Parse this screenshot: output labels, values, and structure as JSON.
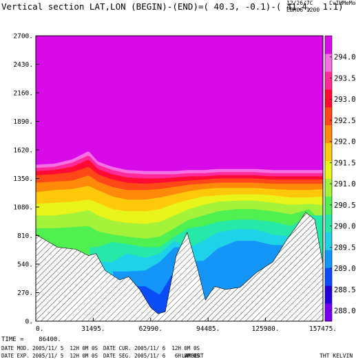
{
  "header": {
    "title": "Vertical section LAT,LON (BEGIN)-(END)=( 40.3, -0.1)-( 41.4,  1.1)",
    "date_short": "12/26/7C",
    "version": "CvIHMeMos",
    "case": "EBR06 1200"
  },
  "footer": {
    "time": "TIME =    86400.",
    "date_mod": "DATE MOD. 2005/11/ 5  12H 0M 0S",
    "date_exp": "DATE EXP. 2005/11/ 5  12H 0M 0S",
    "date_cur": "DATE CUR. 2005/11/ 6  12H 0M 0S",
    "date_seg": "DATE SEG. 2005/11/ 6   6H 0M 0S",
    "projection": "LAMBERT",
    "variable": "THT KELVIN"
  },
  "colors": {
    "bands": [
      "#7a00f0",
      "#2200d8",
      "#0a4cf6",
      "#1496f8",
      "#1ed2e8",
      "#26e8a8",
      "#50f050",
      "#a4f23a",
      "#e8f41a",
      "#ffc80a",
      "#ff8a0a",
      "#ff4818",
      "#ff0a32",
      "#ff2a9a",
      "#f470e4",
      "#d80ae8"
    ]
  },
  "chart_data": {
    "type": "contour",
    "x_ticks": [
      "0.",
      "31495.",
      "62990.",
      "94485.",
      "125980.",
      "157475."
    ],
    "x_tick_values": [
      0,
      31495,
      62990,
      94485,
      125980,
      157475
    ],
    "y_ticks": [
      "0.",
      "270.",
      "540.",
      "810.",
      "1080.",
      "1350.",
      "1620.",
      "1890.",
      "2160.",
      "2430.",
      "2700."
    ],
    "y_tick_values": [
      0,
      270,
      540,
      810,
      1080,
      1350,
      1620,
      1890,
      2160,
      2430,
      2700
    ],
    "xlim": [
      0,
      157475
    ],
    "ylim": [
      0,
      2700
    ],
    "colorbar_labels": [
      "288.0",
      "288.5",
      "289.0",
      "289.5",
      "290.0",
      "290.5",
      "291.0",
      "291.5",
      "292.0",
      "292.5",
      "293.0",
      "293.5",
      "294.0"
    ],
    "colorbar_min": 287.75,
    "colorbar_max": 294.5,
    "terrain": {
      "x": [
        0,
        5000,
        12000,
        22000,
        29000,
        33000,
        38000,
        46000,
        51000,
        57000,
        63000,
        67000,
        71000,
        77000,
        83000,
        89000,
        93000,
        98000,
        104000,
        112000,
        121000,
        130000,
        138000,
        143000,
        148000,
        153000,
        157475
      ],
      "z": [
        820,
        770,
        700,
        680,
        620,
        640,
        480,
        390,
        420,
        300,
        130,
        70,
        90,
        620,
        840,
        480,
        200,
        330,
        300,
        320,
        460,
        560,
        780,
        900,
        1030,
        960,
        540
      ]
    },
    "isentropes": {
      "x": [
        0,
        10000,
        20000,
        29000,
        34000,
        42000,
        50000,
        60000,
        68000,
        76000,
        84000,
        92000,
        100000,
        110000,
        120000,
        130000,
        140000,
        150000,
        157475
      ],
      "levels": [
        {
          "theta": 288.0,
          "z": [
            null,
            null,
            null,
            null,
            null,
            null,
            null,
            330,
            250,
            480,
            null,
            null,
            null,
            null,
            null,
            null,
            null,
            null,
            null
          ]
        },
        {
          "theta": 288.5,
          "z": [
            null,
            null,
            null,
            null,
            null,
            null,
            470,
            480,
            560,
            700,
            null,
            570,
            690,
            760,
            760,
            720,
            null,
            null,
            null
          ]
        },
        {
          "theta": 289.0,
          "z": [
            null,
            null,
            null,
            null,
            null,
            560,
            640,
            600,
            640,
            760,
            700,
            760,
            840,
            870,
            870,
            820,
            800,
            null,
            null
          ]
        },
        {
          "theta": 289.5,
          "z": [
            null,
            null,
            null,
            null,
            700,
            750,
            730,
            700,
            700,
            800,
            880,
            900,
            940,
            960,
            960,
            940,
            900,
            1000,
            null
          ]
        },
        {
          "theta": 290.0,
          "z": [
            null,
            880,
            890,
            900,
            850,
            820,
            800,
            780,
            800,
            880,
            960,
            1000,
            1040,
            1060,
            1060,
            1040,
            1010,
            1060,
            920
          ]
        },
        {
          "theta": 290.5,
          "z": [
            1000,
            1000,
            1020,
            1050,
            1000,
            950,
            930,
            920,
            940,
            1000,
            1060,
            1100,
            1130,
            1140,
            1140,
            1120,
            1100,
            1110,
            1100
          ]
        },
        {
          "theta": 291.0,
          "z": [
            1110,
            1120,
            1130,
            1150,
            1120,
            1060,
            1040,
            1040,
            1060,
            1110,
            1150,
            1180,
            1190,
            1200,
            1200,
            1190,
            1170,
            1170,
            1180
          ]
        },
        {
          "theta": 291.5,
          "z": [
            1220,
            1240,
            1250,
            1280,
            1240,
            1180,
            1150,
            1150,
            1170,
            1200,
            1230,
            1250,
            1260,
            1260,
            1260,
            1250,
            1240,
            1240,
            1250
          ]
        },
        {
          "theta": 292.0,
          "z": [
            1310,
            1320,
            1330,
            1380,
            1320,
            1270,
            1240,
            1240,
            1250,
            1270,
            1290,
            1300,
            1310,
            1310,
            1310,
            1300,
            1300,
            1300,
            1300
          ]
        },
        {
          "theta": 292.5,
          "z": [
            1380,
            1390,
            1410,
            1460,
            1390,
            1340,
            1310,
            1300,
            1310,
            1320,
            1330,
            1340,
            1350,
            1350,
            1350,
            1340,
            1340,
            1340,
            1340
          ]
        },
        {
          "theta": 293.0,
          "z": [
            1420,
            1430,
            1460,
            1530,
            1440,
            1390,
            1360,
            1350,
            1350,
            1360,
            1370,
            1370,
            1380,
            1380,
            1380,
            1370,
            1370,
            1370,
            1370
          ]
        },
        {
          "theta": 293.5,
          "z": [
            1450,
            1460,
            1500,
            1570,
            1480,
            1430,
            1400,
            1390,
            1390,
            1390,
            1400,
            1400,
            1410,
            1410,
            1410,
            1400,
            1400,
            1400,
            1400
          ]
        },
        {
          "theta": 294.0,
          "z": [
            1480,
            1490,
            1530,
            1610,
            1510,
            1460,
            1430,
            1420,
            1420,
            1420,
            1430,
            1430,
            1440,
            1440,
            1440,
            1430,
            1430,
            1430,
            1430
          ]
        }
      ]
    }
  }
}
